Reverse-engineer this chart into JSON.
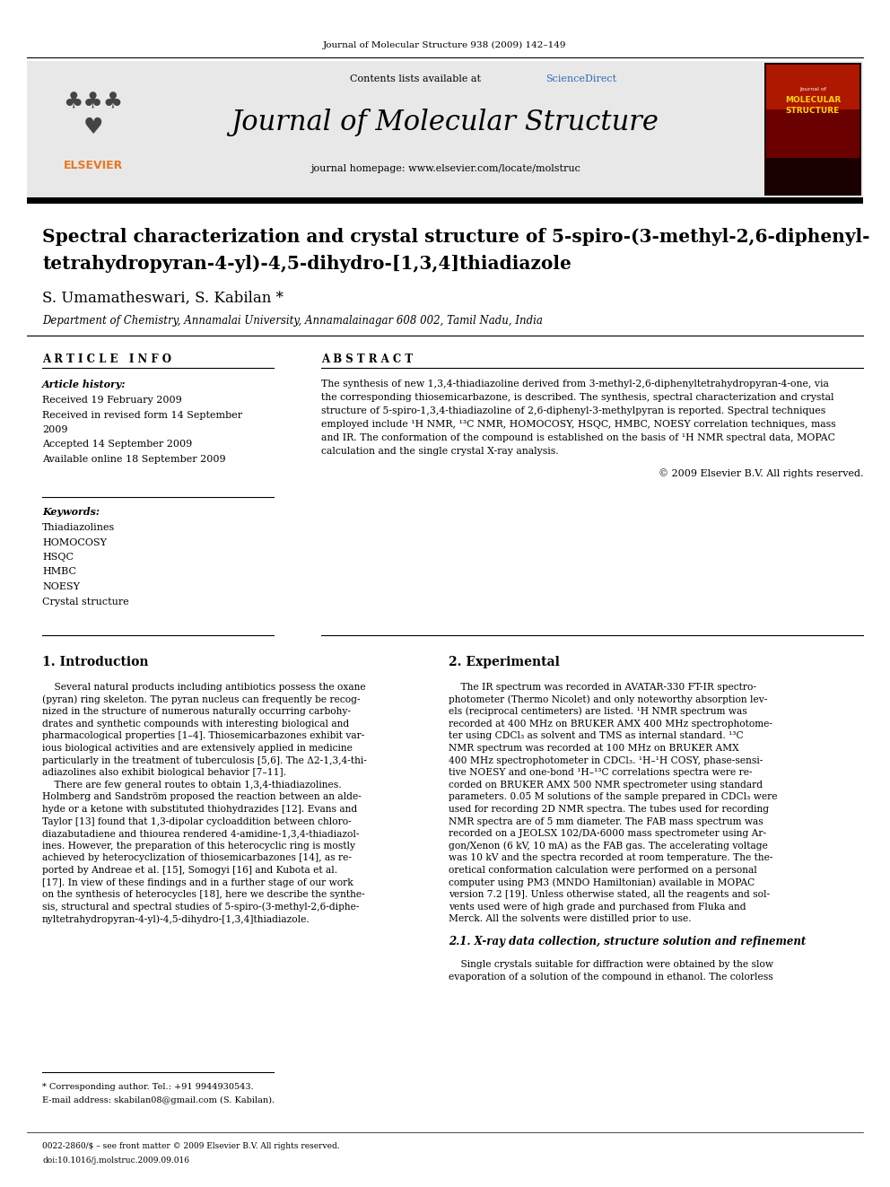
{
  "journal_ref": "Journal of Molecular Structure 938 (2009) 142–149",
  "journal_name": "Journal of Molecular Structure",
  "sciencedirect_color": "#2a6cb5",
  "journal_homepage": "journal homepage: www.elsevier.com/locate/molstruc",
  "title_line1": "Spectral characterization and crystal structure of 5-spiro-(3-methyl-2,6-diphenyl-",
  "title_line2": "tetrahydropyran-4-yl)-4,5-dihydro-[1,3,4]thiadiazole",
  "authors": "S. Umamatheswari, S. Kabilan *",
  "affiliation": "Department of Chemistry, Annamalai University, Annamalainagar 608 002, Tamil Nadu, India",
  "article_info_header": "A R T I C L E   I N F O",
  "abstract_header": "A B S T R A C T",
  "article_history_label": "Article history:",
  "received1": "Received 19 February 2009",
  "received2": "Received in revised form 14 September",
  "received2b": "2009",
  "accepted": "Accepted 14 September 2009",
  "available": "Available online 18 September 2009",
  "keywords_label": "Keywords:",
  "keywords": [
    "Thiadiazolines",
    "HOMOCOSY",
    "HSQC",
    "HMBC",
    "NOESY",
    "Crystal structure"
  ],
  "abstract_lines": [
    "The synthesis of new 1,3,4-thiadiazoline derived from 3-methyl-2,6-diphenyltetrahydropyran-4-one, via",
    "the corresponding thiosemicarbazone, is described. The synthesis, spectral characterization and crystal",
    "structure of 5-spiro-1,3,4-thiadiazoline of 2,6-diphenyl-3-methylpyran is reported. Spectral techniques",
    "employed include ¹H NMR, ¹³C NMR, HOMOCOSY, HSQC, HMBC, NOESY correlation techniques, mass",
    "and IR. The conformation of the compound is established on the basis of ¹H NMR spectral data, MOPAC",
    "calculation and the single crystal X-ray analysis."
  ],
  "copyright": "© 2009 Elsevier B.V. All rights reserved.",
  "section1_title": "1. Introduction",
  "section2_title": "2. Experimental",
  "intro_lines": [
    "    Several natural products including antibiotics possess the oxane",
    "(pyran) ring skeleton. The pyran nucleus can frequently be recog-",
    "nized in the structure of numerous naturally occurring carbohy-",
    "drates and synthetic compounds with interesting biological and",
    "pharmacological properties [1–4]. Thiosemicarbazones exhibit var-",
    "ious biological activities and are extensively applied in medicine",
    "particularly in the treatment of tuberculosis [5,6]. The Δ2-1,3,4-thi-",
    "adiazolines also exhibit biological behavior [7–11].",
    "    There are few general routes to obtain 1,3,4-thiadiazolines.",
    "Holmberg and Sandström proposed the reaction between an alde-",
    "hyde or a ketone with substituted thiohydrazides [12]. Evans and",
    "Taylor [13] found that 1,3-dipolar cycloaddition between chloro-",
    "diazabutadiene and thiourea rendered 4-amidine-1,3,4-thiadiazol-",
    "ines. However, the preparation of this heterocyclic ring is mostly",
    "achieved by heterocyclization of thiosemicarbazones [14], as re-",
    "ported by Andreae et al. [15], Somogyi [16] and Kubota et al.",
    "[17]. In view of these findings and in a further stage of our work",
    "on the synthesis of heterocycles [18], here we describe the synthe-",
    "sis, structural and spectral studies of 5-spiro-(3-methyl-2,6-diphe-",
    "nyltetrahydropyran-4-yl)-4,5-dihydro-[1,3,4]thiadiazole."
  ],
  "exp_lines": [
    "    The IR spectrum was recorded in AVATAR-330 FT-IR spectro-",
    "photometer (Thermo Nicolet) and only noteworthy absorption lev-",
    "els (reciprocal centimeters) are listed. ¹H NMR spectrum was",
    "recorded at 400 MHz on BRUKER AMX 400 MHz spectrophotome-",
    "ter using CDCl₃ as solvent and TMS as internal standard. ¹³C",
    "NMR spectrum was recorded at 100 MHz on BRUKER AMX",
    "400 MHz spectrophotometer in CDCl₃. ¹H–¹H COSY, phase-sensi-",
    "tive NOESY and one-bond ¹H–¹³C correlations spectra were re-",
    "corded on BRUKER AMX 500 NMR spectrometer using standard",
    "parameters. 0.05 M solutions of the sample prepared in CDCl₃ were",
    "used for recording 2D NMR spectra. The tubes used for recording",
    "NMR spectra are of 5 mm diameter. The FAB mass spectrum was",
    "recorded on a JEOLSX 102/DA-6000 mass spectrometer using Ar-",
    "gon/Xenon (6 kV, 10 mA) as the FAB gas. The accelerating voltage",
    "was 10 kV and the spectra recorded at room temperature. The the-",
    "oretical conformation calculation were performed on a personal",
    "computer using PM3 (MNDO Hamiltonian) available in MOPAC",
    "version 7.2 [19]. Unless otherwise stated, all the reagents and sol-",
    "vents used were of high grade and purchased from Fluka and",
    "Merck. All the solvents were distilled prior to use."
  ],
  "section21_title": "2.1. X-ray data collection, structure solution and refinement",
  "section21_lines": [
    "    Single crystals suitable for diffraction were obtained by the slow",
    "evaporation of a solution of the compound in ethanol. The colorless"
  ],
  "footnote_star": "* Corresponding author. Tel.: +91 9944930543.",
  "footnote_email": "E-mail address: skabilan08@gmail.com (S. Kabilan).",
  "footer_issn": "0022-2860/$ – see front matter © 2009 Elsevier B.V. All rights reserved.",
  "footer_doi": "doi:10.1016/j.molstruc.2009.09.016",
  "bg_header": "#e8e8e8",
  "bg_white": "#ffffff",
  "text_black": "#000000",
  "elsevier_orange": "#e87722",
  "cover_bg": "#2a0a0a",
  "cover_text_color": "#FFD700"
}
